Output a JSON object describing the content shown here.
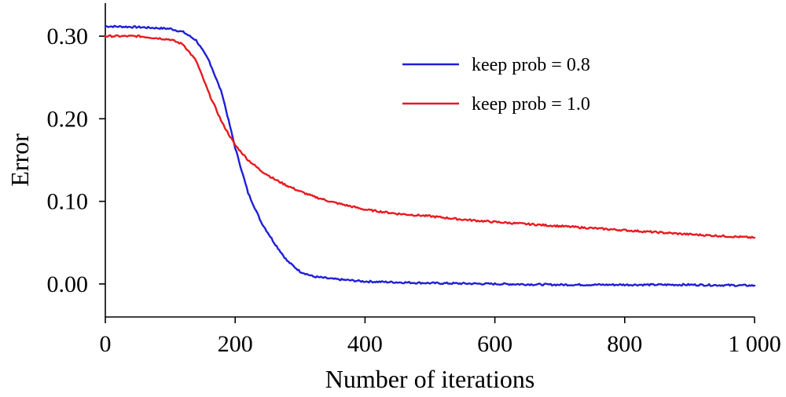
{
  "chart_data": {
    "type": "line",
    "title": "",
    "xlabel": "Number of iterations",
    "ylabel": "Error",
    "xlim": [
      0,
      1000
    ],
    "ylim": [
      -0.04,
      0.34
    ],
    "x_ticks": [
      0,
      200,
      400,
      600,
      800,
      1000
    ],
    "x_tick_labels": [
      "0",
      "200",
      "400",
      "600",
      "800",
      "1 000"
    ],
    "y_ticks": [
      0.0,
      0.1,
      0.2,
      0.3
    ],
    "y_tick_labels": [
      "0.00",
      "0.10",
      "0.20",
      "0.30"
    ],
    "grid": false,
    "legend_position": "top-right",
    "series": [
      {
        "name": "keep prob = 0.8",
        "color": "#1f1fd6",
        "x": [
          0,
          50,
          100,
          120,
          140,
          160,
          180,
          200,
          220,
          240,
          260,
          280,
          300,
          320,
          350,
          400,
          500,
          600,
          700,
          800,
          900,
          1000
        ],
        "y": [
          0.312,
          0.311,
          0.309,
          0.305,
          0.295,
          0.27,
          0.23,
          0.165,
          0.11,
          0.075,
          0.05,
          0.028,
          0.015,
          0.009,
          0.006,
          0.003,
          0.001,
          0.0,
          -0.001,
          -0.001,
          -0.001,
          -0.002
        ]
      },
      {
        "name": "keep prob = 1.0",
        "color": "#e8191f",
        "x": [
          0,
          50,
          100,
          120,
          140,
          160,
          180,
          200,
          220,
          240,
          260,
          280,
          300,
          320,
          350,
          400,
          450,
          500,
          550,
          600,
          700,
          800,
          900,
          1000
        ],
        "y": [
          0.3,
          0.3,
          0.296,
          0.29,
          0.27,
          0.23,
          0.195,
          0.168,
          0.15,
          0.137,
          0.127,
          0.119,
          0.112,
          0.106,
          0.099,
          0.09,
          0.085,
          0.082,
          0.078,
          0.075,
          0.07,
          0.065,
          0.06,
          0.056
        ]
      }
    ]
  }
}
